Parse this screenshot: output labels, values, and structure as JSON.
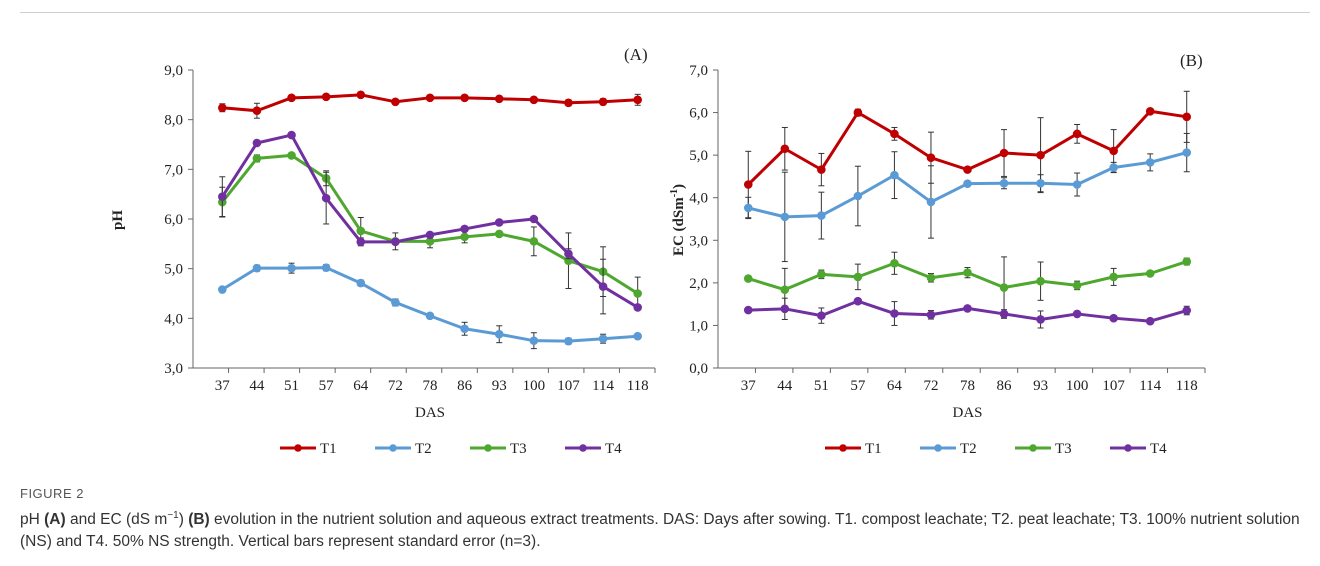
{
  "figure": {
    "label": "FIGURE 2",
    "caption_parts": {
      "p1": "pH ",
      "p2": "(A)",
      "p3": " and EC (dS m",
      "p4": "−1",
      "p5": ") ",
      "p6": "(B)",
      "p7": " evolution in the nutrient solution and aqueous extract treatments. DAS: Days after sowing. T1. compost leachate; T2. peat leachate; T3. 100% nutrient solution (NS) and T4. 50% NS strength. Vertical bars represent standard error (n=3)."
    }
  },
  "colors": {
    "T1": "#c00000",
    "T2": "#5b9bd5",
    "T3": "#4ea72e",
    "T4": "#7030a0",
    "axis": "#444444"
  },
  "chart_data": [
    {
      "type": "line",
      "panel_label": "(A)",
      "xlabel": "DAS",
      "ylabel": "pH",
      "ylim": [
        3.0,
        9.0
      ],
      "y_ticks": [
        "3,0",
        "4,0",
        "5,0",
        "6,0",
        "7,0",
        "8,0",
        "9,0"
      ],
      "categories": [
        "37",
        "44",
        "51",
        "57",
        "64",
        "72",
        "78",
        "86",
        "93",
        "100",
        "107",
        "114",
        "118"
      ],
      "legend": "bottom",
      "series": [
        {
          "name": "T1",
          "values": [
            8.24,
            8.18,
            8.44,
            8.46,
            8.5,
            8.36,
            8.44,
            8.44,
            8.42,
            8.4,
            8.34,
            8.36,
            8.4
          ],
          "errors": [
            0.08,
            0.15,
            0.03,
            0.03,
            0.03,
            0.04,
            0.04,
            0.03,
            0.03,
            0.04,
            0.06,
            0.06,
            0.11
          ]
        },
        {
          "name": "T2",
          "values": [
            4.58,
            5.01,
            5.01,
            5.02,
            4.71,
            4.32,
            4.05,
            3.79,
            3.68,
            3.55,
            3.54,
            3.59,
            3.64
          ],
          "errors": [
            0.03,
            0.06,
            0.1,
            0.06,
            0.06,
            0.07,
            0.04,
            0.13,
            0.17,
            0.16,
            0.06,
            0.09,
            0.04
          ]
        },
        {
          "name": "T3",
          "values": [
            6.34,
            7.22,
            7.28,
            6.82,
            5.76,
            5.55,
            5.55,
            5.64,
            5.7,
            5.55,
            5.16,
            4.94,
            4.5
          ],
          "errors": [
            0.3,
            0.07,
            0.04,
            0.15,
            0.27,
            0.17,
            0.13,
            0.12,
            0.03,
            0.29,
            0.56,
            0.5,
            0.33
          ]
        },
        {
          "name": "T4",
          "values": [
            6.45,
            7.53,
            7.69,
            6.42,
            5.54,
            5.54,
            5.68,
            5.8,
            5.93,
            6.0,
            5.3,
            4.64,
            4.22
          ],
          "errors": [
            0.4,
            0.03,
            0.03,
            0.52,
            0.08,
            0.05,
            0.04,
            0.05,
            0.05,
            0.05,
            0.1,
            0.55,
            0.05
          ]
        }
      ]
    },
    {
      "type": "line",
      "panel_label": "(B)",
      "xlabel": "DAS",
      "ylabel_main": "EC (dSm",
      "ylabel_sup": "-1",
      "ylabel_end": ")",
      "ylim": [
        0.0,
        7.0
      ],
      "y_ticks": [
        "0,0",
        "1,0",
        "2,0",
        "3,0",
        "4,0",
        "5,0",
        "6,0",
        "7,0"
      ],
      "categories": [
        "37",
        "44",
        "51",
        "57",
        "64",
        "72",
        "78",
        "86",
        "93",
        "100",
        "107",
        "114",
        "118"
      ],
      "legend": "bottom",
      "series": [
        {
          "name": "T1",
          "values": [
            4.31,
            5.15,
            4.66,
            6.0,
            5.5,
            4.94,
            4.66,
            5.05,
            5.0,
            5.5,
            5.1,
            6.03,
            5.9
          ],
          "errors": [
            0.78,
            0.5,
            0.38,
            0.08,
            0.15,
            0.6,
            0.05,
            0.55,
            0.88,
            0.22,
            0.5,
            0.05,
            0.6
          ]
        },
        {
          "name": "T2",
          "values": [
            3.76,
            3.55,
            3.58,
            4.04,
            4.53,
            3.9,
            4.33,
            4.34,
            4.34,
            4.31,
            4.71,
            4.83,
            5.06
          ],
          "errors": [
            0.25,
            1.05,
            0.55,
            0.7,
            0.55,
            0.85,
            0.05,
            0.13,
            0.2,
            0.27,
            0.12,
            0.2,
            0.45
          ]
        },
        {
          "name": "T3",
          "values": [
            2.1,
            1.84,
            2.2,
            2.14,
            2.46,
            2.12,
            2.24,
            1.89,
            2.04,
            1.94,
            2.14,
            2.22,
            2.5
          ],
          "errors": [
            0.05,
            0.5,
            0.1,
            0.3,
            0.26,
            0.1,
            0.12,
            0.72,
            0.45,
            0.1,
            0.2,
            0.05,
            0.08
          ]
        },
        {
          "name": "T4",
          "values": [
            1.36,
            1.39,
            1.23,
            1.57,
            1.28,
            1.25,
            1.4,
            1.27,
            1.14,
            1.27,
            1.17,
            1.1,
            1.35
          ],
          "errors": [
            0.05,
            0.25,
            0.18,
            0.06,
            0.28,
            0.1,
            0.03,
            0.1,
            0.2,
            0.05,
            0.03,
            0.03,
            0.1
          ]
        }
      ]
    }
  ]
}
